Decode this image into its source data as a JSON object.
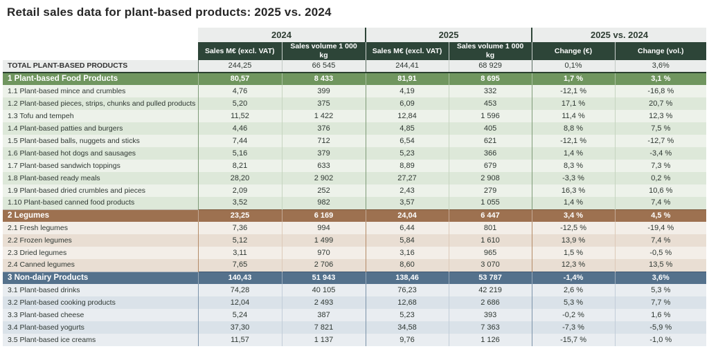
{
  "title": "Retail sales data for plant-based products: 2025 vs. 2024",
  "colors": {
    "header_bg": "#2d4538",
    "section_food": "#70965f",
    "section_legumes": "#9d7150",
    "section_nondairy": "#54718c",
    "stripe_green_light": "#edf2ea",
    "stripe_green_dark": "#dde8d9",
    "stripe_tan_light": "#f3eee8",
    "stripe_tan_dark": "#e9ded3",
    "stripe_blue_light": "#e9edf1",
    "stripe_blue_dark": "#dae2e9",
    "total_row_bg": "#ebedec"
  },
  "table": {
    "groups": [
      {
        "label": "2024"
      },
      {
        "label": "2025"
      },
      {
        "label": "2025 vs. 2024"
      }
    ],
    "columns": [
      "Sales M€ (excl. VAT)",
      "Sales volume 1 000 kg",
      "Sales M€ (excl. VAT)",
      "Sales volume 1 000 kg",
      "Change (€)",
      "Change (vol.)"
    ],
    "rows": [
      {
        "type": "total",
        "section": "neutral",
        "label": "TOTAL PLANT-BASED PRODUCTS",
        "values": [
          "244,25",
          "66 545",
          "244,41",
          "68 929",
          "0,1%",
          "3,6%"
        ]
      },
      {
        "type": "section",
        "section": "green",
        "label": "1 Plant-based Food Products",
        "values": [
          "80,57",
          "8 433",
          "81,91",
          "8 695",
          "1,7 %",
          "3,1 %"
        ]
      },
      {
        "type": "item",
        "section": "green",
        "label": "1.1 Plant-based mince and crumbles",
        "values": [
          "4,76",
          "399",
          "4,19",
          "332",
          "-12,1 %",
          "-16,8 %"
        ]
      },
      {
        "type": "item",
        "section": "green",
        "label": "1.2 Plant-based pieces, strips, chunks and pulled products",
        "values": [
          "5,20",
          "375",
          "6,09",
          "453",
          "17,1 %",
          "20,7 %"
        ]
      },
      {
        "type": "item",
        "section": "green",
        "label": "1.3 Tofu and tempeh",
        "values": [
          "11,52",
          "1 422",
          "12,84",
          "1 596",
          "11,4 %",
          "12,3 %"
        ]
      },
      {
        "type": "item",
        "section": "green",
        "label": "1.4 Plant-based patties and burgers",
        "values": [
          "4,46",
          "376",
          "4,85",
          "405",
          "8,8 %",
          "7,5 %"
        ]
      },
      {
        "type": "item",
        "section": "green",
        "label": "1.5 Plant-based balls, nuggets and sticks",
        "values": [
          "7,44",
          "712",
          "6,54",
          "621",
          "-12,1 %",
          "-12,7 %"
        ]
      },
      {
        "type": "item",
        "section": "green",
        "label": "1.6 Plant-based hot dogs and sausages",
        "values": [
          "5,16",
          "379",
          "5,23",
          "366",
          "1,4 %",
          "-3,4 %"
        ]
      },
      {
        "type": "item",
        "section": "green",
        "label": "1.7 Plant-based sandwich toppings",
        "values": [
          "8,21",
          "633",
          "8,89",
          "679",
          "8,3 %",
          "7,3 %"
        ]
      },
      {
        "type": "item",
        "section": "green",
        "label": "1.8 Plant-based ready meals",
        "values": [
          "28,20",
          "2 902",
          "27,27",
          "2 908",
          "-3,3 %",
          "0,2 %"
        ]
      },
      {
        "type": "item",
        "section": "green",
        "label": "1.9 Plant-based dried crumbles and pieces",
        "values": [
          "2,09",
          "252",
          "2,43",
          "279",
          "16,3 %",
          "10,6 %"
        ]
      },
      {
        "type": "item",
        "section": "green",
        "label": "1.10 Plant-based canned food products",
        "values": [
          "3,52",
          "982",
          "3,57",
          "1 055",
          "1,4 %",
          "7,4 %"
        ]
      },
      {
        "type": "section",
        "section": "tan",
        "label": "2 Legumes",
        "values": [
          "23,25",
          "6 169",
          "24,04",
          "6 447",
          "3,4 %",
          "4,5 %"
        ]
      },
      {
        "type": "item",
        "section": "tan",
        "label": "2.1 Fresh legumes",
        "values": [
          "7,36",
          "994",
          "6,44",
          "801",
          "-12,5 %",
          "-19,4 %"
        ]
      },
      {
        "type": "item",
        "section": "tan",
        "label": "2.2 Frozen legumes",
        "values": [
          "5,12",
          "1 499",
          "5,84",
          "1 610",
          "13,9 %",
          "7,4 %"
        ]
      },
      {
        "type": "item",
        "section": "tan",
        "label": "2.3 Dried legumes",
        "values": [
          "3,11",
          "970",
          "3,16",
          "965",
          "1,5 %",
          "-0,5 %"
        ]
      },
      {
        "type": "item",
        "section": "tan",
        "label": "2.4 Canned legumes",
        "values": [
          "7,65",
          "2 706",
          "8,60",
          "3 070",
          "12,3 %",
          "13,5 %"
        ]
      },
      {
        "type": "section",
        "section": "blue",
        "label": "3 Non-dairy Products",
        "values": [
          "140,43",
          "51 943",
          "138,46",
          "53 787",
          "-1,4%",
          "3,6%"
        ]
      },
      {
        "type": "item",
        "section": "blue",
        "label": "3.1 Plant-based drinks",
        "values": [
          "74,28",
          "40 105",
          "76,23",
          "42 219",
          "2,6 %",
          "5,3 %"
        ]
      },
      {
        "type": "item",
        "section": "blue",
        "label": "3.2 Plant-based cooking products",
        "values": [
          "12,04",
          "2 493",
          "12,68",
          "2 686",
          "5,3 %",
          "7,7 %"
        ]
      },
      {
        "type": "item",
        "section": "blue",
        "label": "3.3 Plant-based cheese",
        "values": [
          "5,24",
          "387",
          "5,23",
          "393",
          "-0,2 %",
          "1,6 %"
        ]
      },
      {
        "type": "item",
        "section": "blue",
        "label": "3.4 Plant-based yogurts",
        "values": [
          "37,30",
          "7 821",
          "34,58",
          "7 363",
          "-7,3 %",
          "-5,9 %"
        ]
      },
      {
        "type": "item",
        "section": "blue",
        "label": "3.5 Plant-based ice creams",
        "values": [
          "11,57",
          "1 137",
          "9,76",
          "1 126",
          "-15,7 %",
          "-1,0 %"
        ]
      }
    ]
  }
}
